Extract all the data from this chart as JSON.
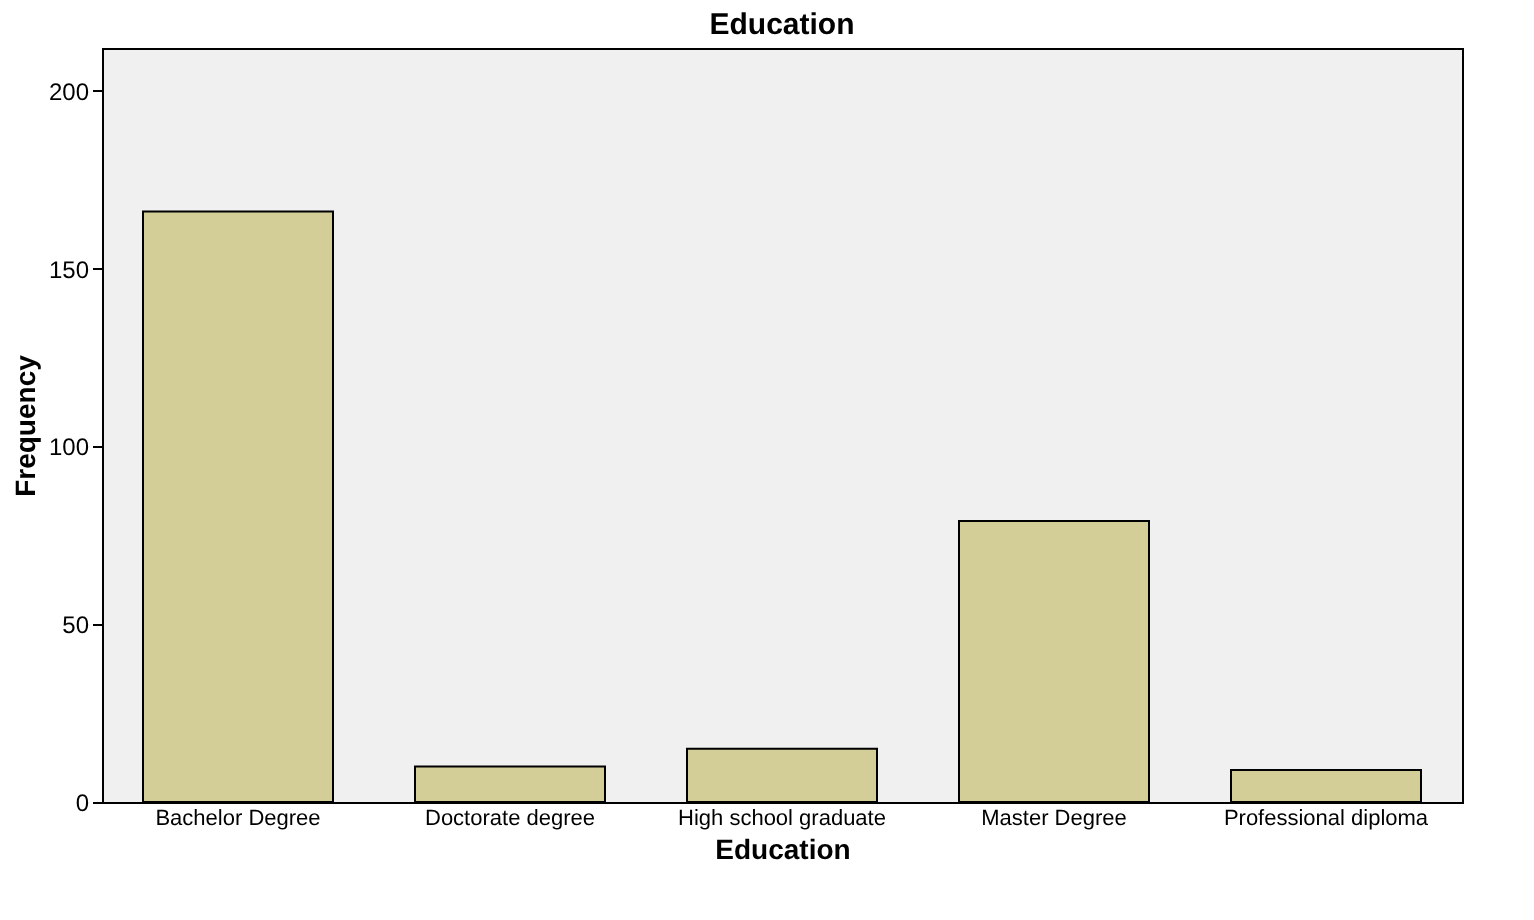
{
  "chart_data": {
    "type": "bar",
    "title": "Education",
    "xlabel": "Education",
    "ylabel": "Frequency",
    "categories": [
      "Bachelor Degree",
      "Doctorate degree",
      "High school graduate",
      "Master Degree",
      "Professional diploma"
    ],
    "values": [
      166,
      10,
      15,
      79,
      9
    ],
    "color": "#d3ce97",
    "ylim": [
      0,
      212
    ],
    "yticks": [
      0,
      50,
      100,
      150,
      200
    ],
    "grid": false
  }
}
